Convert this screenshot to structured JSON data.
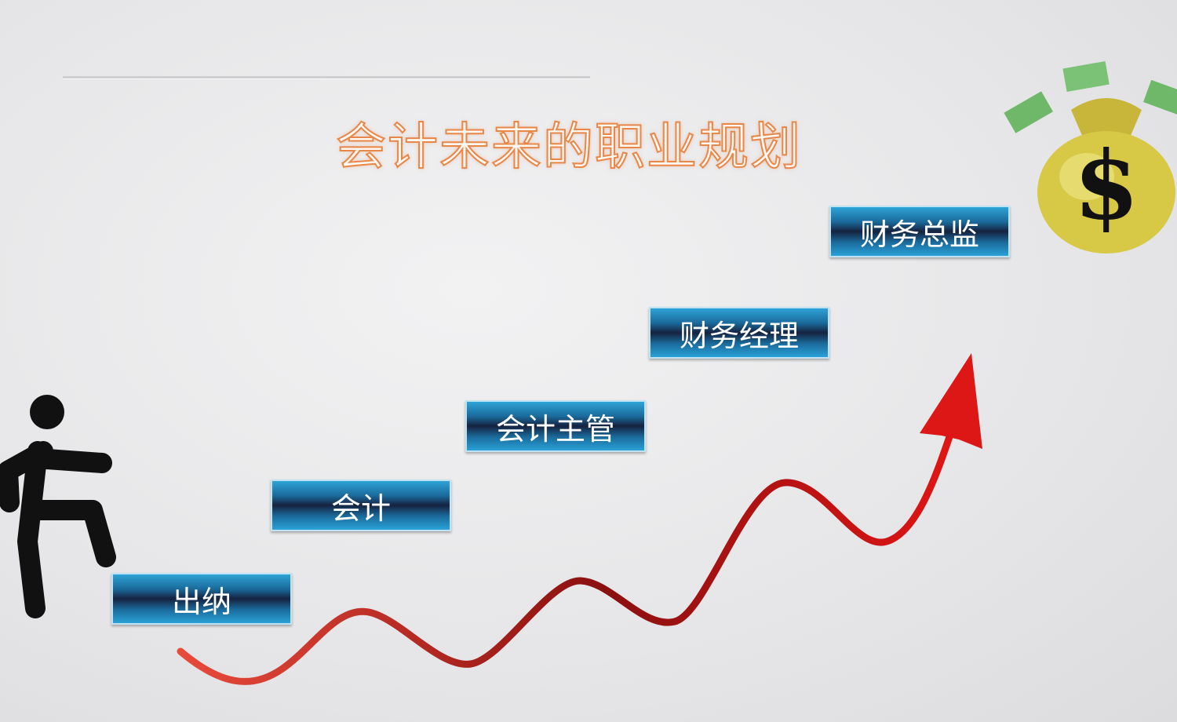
{
  "title": "会计未来的职业规划",
  "steps": [
    {
      "label": "出纳"
    },
    {
      "label": "会计"
    },
    {
      "label": "会计主管"
    },
    {
      "label": "财务经理"
    },
    {
      "label": "财务总监"
    }
  ],
  "colors": {
    "step_top": "#2fa3d6",
    "step_mid": "#16223f",
    "arrow": "#d41818",
    "title_outline": "#e8874a"
  },
  "icons": {
    "person": "walking-person-icon",
    "money": "money-bag-icon",
    "arrow": "rising-arrow-icon"
  }
}
